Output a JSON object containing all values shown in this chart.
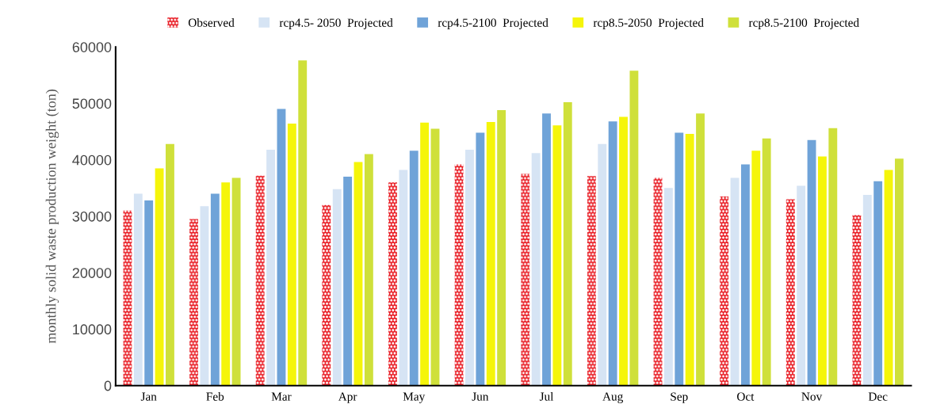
{
  "chart_data": {
    "type": "bar",
    "ylabel": "monthly solid waste production weight (ton)",
    "categories": [
      "Jan",
      "Feb",
      "Mar",
      "Apr",
      "May",
      "Jun",
      "Jul",
      "Aug",
      "Sep",
      "Oct",
      "Nov",
      "Dec"
    ],
    "series": [
      {
        "name": "Observed",
        "color": "#e8141c",
        "values": [
          31000,
          29500,
          37200,
          32000,
          36000,
          39200,
          37500,
          37100,
          36800,
          33500,
          33000,
          30200
        ]
      },
      {
        "name": "rcp4.5- 2050  Projected",
        "color": "#d6e4f4",
        "values": [
          34000,
          31800,
          41800,
          34800,
          38200,
          41800,
          41200,
          42800,
          35000,
          36800,
          35400,
          33800
        ]
      },
      {
        "name": "rcp4.5-2100  Projected",
        "color": "#6fa3d8",
        "values": [
          32800,
          34000,
          49000,
          37000,
          41600,
          44800,
          48200,
          46800,
          44800,
          39200,
          43500,
          36200
        ]
      },
      {
        "name": "rcp8.5-2050  Projected",
        "color": "#f5f50a",
        "values": [
          38500,
          36000,
          46400,
          39600,
          46600,
          46700,
          46100,
          47600,
          44600,
          41600,
          40600,
          38200
        ]
      },
      {
        "name": "rcp8.5-2100  Projected",
        "color": "#cfe03a",
        "values": [
          42800,
          36800,
          57600,
          41000,
          45500,
          48800,
          50200,
          55800,
          48200,
          43800,
          45600,
          40200
        ]
      }
    ],
    "ylim": [
      0,
      60000
    ],
    "yticks": [
      0,
      10000,
      20000,
      30000,
      40000,
      50000,
      60000
    ],
    "grid": false,
    "legend": "top"
  }
}
